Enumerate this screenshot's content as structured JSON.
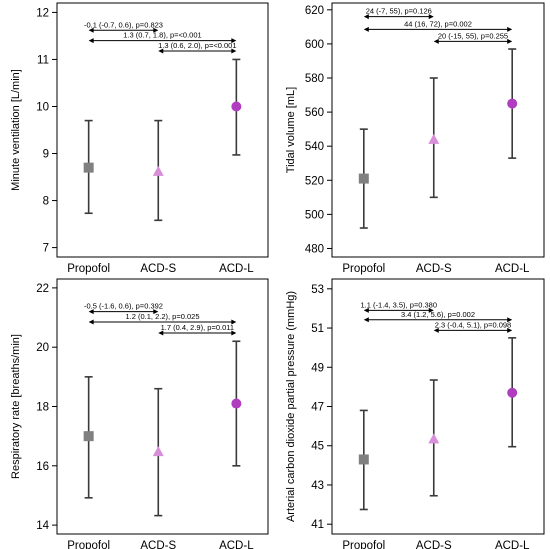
{
  "chart_data": [
    {
      "type": "errorbar",
      "ylabel": "Minute ventilation [L/min]",
      "categories": [
        "Propofol",
        "ACD-S",
        "ACD-L"
      ],
      "ylim": [
        6.8,
        12.2
      ],
      "yticks": [
        7,
        8,
        9,
        10,
        11,
        12
      ],
      "points": [
        {
          "category": "Propofol",
          "mean": 8.7,
          "lower": 7.73,
          "upper": 9.7,
          "marker": "square",
          "color": "#808080"
        },
        {
          "category": "ACD-S",
          "mean": 8.62,
          "lower": 7.58,
          "upper": 9.7,
          "marker": "triangle",
          "color": "#d98ed9"
        },
        {
          "category": "ACD-L",
          "mean": 10.0,
          "lower": 8.97,
          "upper": 11.0,
          "marker": "circle",
          "color": "#b03cc0"
        }
      ],
      "comparisons": [
        {
          "from": "Propofol",
          "to": "ACD-S",
          "y": 11.62,
          "label": "-0.1 (-0.7, 0.6), p=0.823"
        },
        {
          "from": "Propofol",
          "to": "ACD-L",
          "y": 11.4,
          "label": "1.3 (0.7, 1.8), p=<0.001"
        },
        {
          "from": "ACD-S",
          "to": "ACD-L",
          "y": 11.18,
          "label": "1.3 (0.6, 2.0), p=<0.001"
        }
      ]
    },
    {
      "type": "errorbar",
      "ylabel": "Tidal volume [mL]",
      "categories": [
        "Propofol",
        "ACD-S",
        "ACD-L"
      ],
      "ylim": [
        475,
        624
      ],
      "yticks": [
        480,
        500,
        520,
        540,
        560,
        580,
        600,
        620
      ],
      "points": [
        {
          "category": "Propofol",
          "mean": 521,
          "lower": 492,
          "upper": 550,
          "marker": "square",
          "color": "#808080"
        },
        {
          "category": "ACD-S",
          "mean": 544,
          "lower": 510,
          "upper": 580,
          "marker": "triangle",
          "color": "#d98ed9"
        },
        {
          "category": "ACD-L",
          "mean": 565,
          "lower": 533,
          "upper": 597,
          "marker": "circle",
          "color": "#b03cc0"
        }
      ],
      "comparisons": [
        {
          "from": "Propofol",
          "to": "ACD-S",
          "y": 616,
          "label": "24 (-7, 55), p=0.126"
        },
        {
          "from": "Propofol",
          "to": "ACD-L",
          "y": 608.5,
          "label": "44 (16, 72), p=0.002"
        },
        {
          "from": "ACD-S",
          "to": "ACD-L",
          "y": 601.5,
          "label": "20 (-15, 55), p=0.255"
        }
      ]
    },
    {
      "type": "errorbar",
      "ylabel": "Respiratory rate [breaths/min]",
      "categories": [
        "Propofol",
        "ACD-S",
        "ACD-L"
      ],
      "ylim": [
        13.7,
        22.3
      ],
      "yticks": [
        14,
        16,
        18,
        20,
        22
      ],
      "points": [
        {
          "category": "Propofol",
          "mean": 17.0,
          "lower": 14.92,
          "upper": 19.0,
          "marker": "square",
          "color": "#808080"
        },
        {
          "category": "ACD-S",
          "mean": 16.48,
          "lower": 14.32,
          "upper": 18.6,
          "marker": "triangle",
          "color": "#d98ed9"
        },
        {
          "category": "ACD-L",
          "mean": 18.1,
          "lower": 16.0,
          "upper": 20.2,
          "marker": "circle",
          "color": "#b03cc0"
        }
      ],
      "comparisons": [
        {
          "from": "Propofol",
          "to": "ACD-S",
          "y": 21.2,
          "label": "-0.5 (-1.6, 0.6), p=0.392"
        },
        {
          "from": "Propofol",
          "to": "ACD-L",
          "y": 20.85,
          "label": "1.2 (0.1, 2.2), p=0.025"
        },
        {
          "from": "ACD-S",
          "to": "ACD-L",
          "y": 20.48,
          "label": "1.7 (0.4, 2.9), p=0.011"
        }
      ]
    },
    {
      "type": "errorbar",
      "ylabel": "Arterial carbon dioxide partial pressure (mmHg)",
      "categories": [
        "Propofol",
        "ACD-S",
        "ACD-L"
      ],
      "ylim": [
        40.5,
        53.5
      ],
      "yticks": [
        41,
        43,
        45,
        47,
        49,
        51,
        53
      ],
      "points": [
        {
          "category": "Propofol",
          "mean": 44.3,
          "lower": 41.75,
          "upper": 46.8,
          "marker": "square",
          "color": "#808080"
        },
        {
          "category": "ACD-S",
          "mean": 45.35,
          "lower": 42.45,
          "upper": 48.35,
          "marker": "triangle",
          "color": "#d98ed9"
        },
        {
          "category": "ACD-L",
          "mean": 47.7,
          "lower": 44.95,
          "upper": 50.5,
          "marker": "circle",
          "color": "#b03cc0"
        }
      ],
      "comparisons": [
        {
          "from": "Propofol",
          "to": "ACD-S",
          "y": 51.9,
          "label": "1.1 (-1.4, 3.5), p=0.380"
        },
        {
          "from": "Propofol",
          "to": "ACD-L",
          "y": 51.42,
          "label": "3.4 (1.2, 5.6), p=0.002"
        },
        {
          "from": "ACD-S",
          "to": "ACD-L",
          "y": 50.88,
          "label": "2.3 (-0.4, 5.1), p=0.098"
        }
      ]
    }
  ]
}
